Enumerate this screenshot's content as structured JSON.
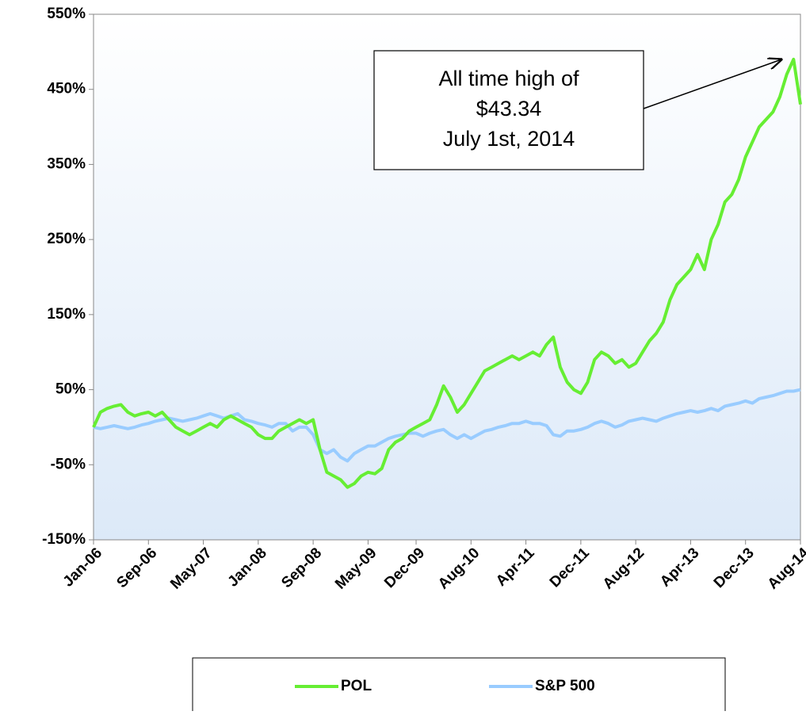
{
  "chart_data": {
    "type": "line",
    "categories": [
      "Jan-06",
      null,
      null,
      null,
      null,
      null,
      null,
      null,
      "Sep-06",
      null,
      null,
      null,
      null,
      null,
      null,
      null,
      "May-07",
      null,
      null,
      null,
      null,
      null,
      null,
      null,
      "Jan-08",
      null,
      null,
      null,
      null,
      null,
      null,
      null,
      "Sep-08",
      null,
      null,
      null,
      null,
      null,
      null,
      null,
      "May-09",
      null,
      null,
      null,
      null,
      null,
      null,
      "Dec-09",
      null,
      null,
      null,
      null,
      null,
      null,
      null,
      "Aug-10",
      null,
      null,
      null,
      null,
      null,
      null,
      null,
      "Apr-11",
      null,
      null,
      null,
      null,
      null,
      null,
      null,
      "Dec-11",
      null,
      null,
      null,
      null,
      null,
      null,
      null,
      "Aug-12",
      null,
      null,
      null,
      null,
      null,
      null,
      null,
      "Apr-13",
      null,
      null,
      null,
      null,
      null,
      null,
      null,
      "Dec-13",
      null,
      null,
      null,
      null,
      null,
      null,
      null,
      "Aug-14"
    ],
    "series": [
      {
        "name": "POL",
        "color": "#66ee33",
        "values": [
          0,
          20,
          25,
          28,
          30,
          20,
          15,
          18,
          20,
          15,
          20,
          10,
          0,
          -5,
          -10,
          -5,
          0,
          5,
          0,
          10,
          15,
          10,
          5,
          0,
          -10,
          -15,
          -15,
          -5,
          0,
          5,
          10,
          5,
          10,
          -30,
          -60,
          -65,
          -70,
          -80,
          -75,
          -65,
          -60,
          -62,
          -55,
          -30,
          -20,
          -15,
          -5,
          0,
          5,
          10,
          30,
          55,
          40,
          20,
          30,
          45,
          60,
          75,
          80,
          85,
          90,
          95,
          90,
          95,
          100,
          95,
          110,
          120,
          80,
          60,
          50,
          45,
          60,
          90,
          100,
          95,
          85,
          90,
          80,
          85,
          100,
          115,
          125,
          140,
          170,
          190,
          200,
          210,
          230,
          210,
          250,
          270,
          300,
          310,
          330,
          360,
          380,
          400,
          410,
          420,
          440,
          470,
          490,
          430
        ]
      },
      {
        "name": "S&P 500",
        "color": "#99ccff",
        "values": [
          0,
          -2,
          0,
          2,
          0,
          -2,
          0,
          3,
          5,
          8,
          10,
          12,
          10,
          8,
          10,
          12,
          15,
          18,
          15,
          12,
          15,
          18,
          10,
          8,
          5,
          3,
          0,
          5,
          5,
          -5,
          0,
          0,
          -10,
          -30,
          -35,
          -30,
          -40,
          -45,
          -35,
          -30,
          -25,
          -25,
          -20,
          -15,
          -12,
          -10,
          -8,
          -8,
          -12,
          -8,
          -5,
          -3,
          -10,
          -15,
          -10,
          -15,
          -10,
          -5,
          -3,
          0,
          2,
          5,
          5,
          8,
          5,
          5,
          2,
          -10,
          -12,
          -5,
          -5,
          -3,
          0,
          5,
          8,
          5,
          0,
          3,
          8,
          10,
          12,
          10,
          8,
          12,
          15,
          18,
          20,
          22,
          20,
          22,
          25,
          22,
          28,
          30,
          32,
          35,
          32,
          38,
          40,
          42,
          45,
          48,
          48,
          50
        ]
      }
    ],
    "ylim": [
      -150,
      550
    ],
    "yticks": [
      {
        "value": -150,
        "label": "-150%"
      },
      {
        "value": -50,
        "label": "-50%"
      },
      {
        "value": 50,
        "label": "50%"
      },
      {
        "value": 150,
        "label": "150%"
      },
      {
        "value": 250,
        "label": "250%"
      },
      {
        "value": 350,
        "label": "350%"
      },
      {
        "value": 450,
        "label": "450%"
      },
      {
        "value": 550,
        "label": "550%"
      }
    ],
    "annotation": [
      "All time high of",
      "$43.34",
      "July 1st, 2014"
    ],
    "legend": "bottom"
  }
}
